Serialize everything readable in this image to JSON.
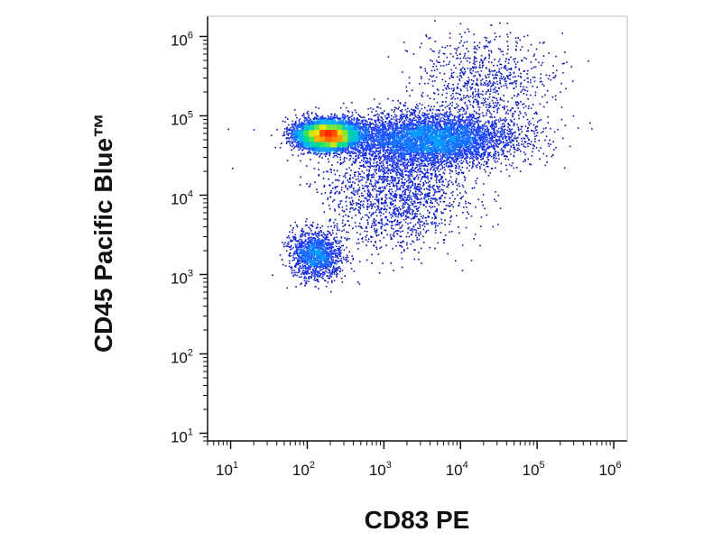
{
  "chart_data": {
    "type": "scatter",
    "style": "flow-cytometry-density-dot-plot",
    "title": "",
    "xlabel": "CD83 PE",
    "ylabel": "CD45 Pacific Blue™",
    "xscale": "log",
    "yscale": "log",
    "xlim": [
      5,
      1500000
    ],
    "ylim": [
      8,
      1800000
    ],
    "x_ticks": [
      {
        "base": "10",
        "exp": "1"
      },
      {
        "base": "10",
        "exp": "2"
      },
      {
        "base": "10",
        "exp": "3"
      },
      {
        "base": "10",
        "exp": "4"
      },
      {
        "base": "10",
        "exp": "5"
      },
      {
        "base": "10",
        "exp": "6"
      }
    ],
    "y_ticks": [
      {
        "base": "10",
        "exp": "1"
      },
      {
        "base": "10",
        "exp": "2"
      },
      {
        "base": "10",
        "exp": "3"
      },
      {
        "base": "10",
        "exp": "4"
      },
      {
        "base": "10",
        "exp": "5"
      },
      {
        "base": "10",
        "exp": "6"
      }
    ],
    "colormap": [
      "#00008b",
      "#1e3cff",
      "#00b4ff",
      "#00e676",
      "#ffe600",
      "#ff2a00"
    ],
    "populations": [
      {
        "center_x": 180,
        "center_y": 58000,
        "spread_log_x": 0.2,
        "spread_log_y": 0.09,
        "weight": 0.42
      },
      {
        "center_x": 4000,
        "center_y": 52000,
        "spread_log_x": 0.55,
        "spread_log_y": 0.16,
        "weight": 0.32
      },
      {
        "center_x": 130,
        "center_y": 1800,
        "spread_log_x": 0.17,
        "spread_log_y": 0.15,
        "weight": 0.09
      },
      {
        "center_x": 1500,
        "center_y": 12000,
        "spread_log_x": 0.45,
        "spread_log_y": 0.35,
        "weight": 0.12
      },
      {
        "center_x": 20000,
        "center_y": 300000,
        "spread_log_x": 0.45,
        "spread_log_y": 0.3,
        "weight": 0.05
      }
    ],
    "grid": false,
    "legend": "none"
  }
}
